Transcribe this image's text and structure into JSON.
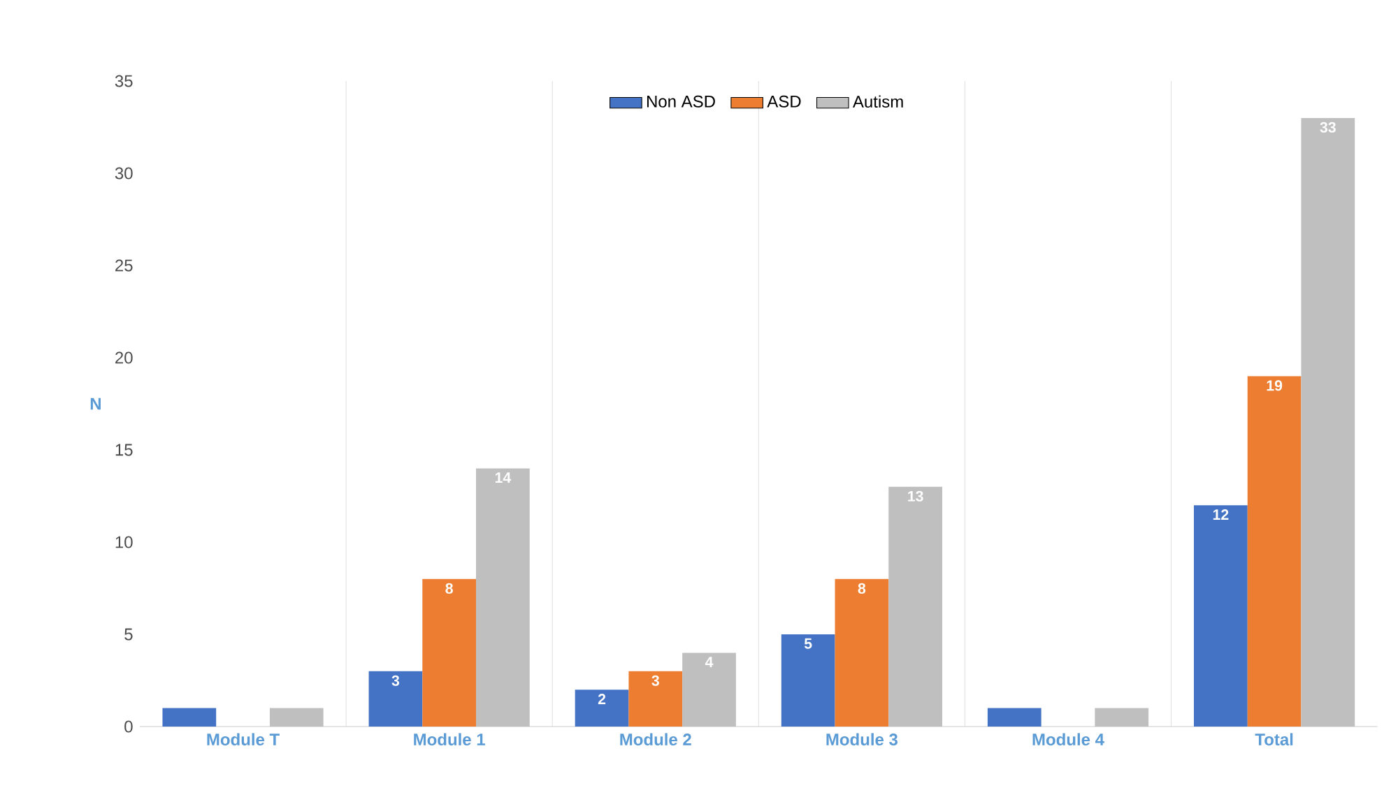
{
  "chart_data": {
    "type": "bar",
    "ylabel": "N",
    "categories": [
      "Module T",
      "Module 1",
      "Module 2",
      "Module 3",
      "Module 4",
      "Total"
    ],
    "series": [
      {
        "name": "Non ASD",
        "color": "#4472c4",
        "values": [
          1,
          3,
          2,
          5,
          1,
          12
        ],
        "value_labels": [
          null,
          "3",
          "2",
          "5",
          null,
          "12"
        ]
      },
      {
        "name": "ASD",
        "color": "#ed7d31",
        "values": [
          null,
          8,
          3,
          8,
          null,
          19
        ],
        "value_labels": [
          null,
          "8",
          "3",
          "8",
          null,
          "19"
        ]
      },
      {
        "name": "Autism",
        "color": "#bfbfbf",
        "values": [
          1,
          14,
          4,
          13,
          1,
          33
        ],
        "value_labels": [
          null,
          "14",
          "4",
          "13",
          null,
          "33"
        ]
      }
    ],
    "ylim": [
      0,
      35
    ],
    "yticks": [
      0,
      5,
      10,
      15,
      20,
      25,
      30,
      35
    ],
    "grid": "x",
    "legend": "top"
  }
}
